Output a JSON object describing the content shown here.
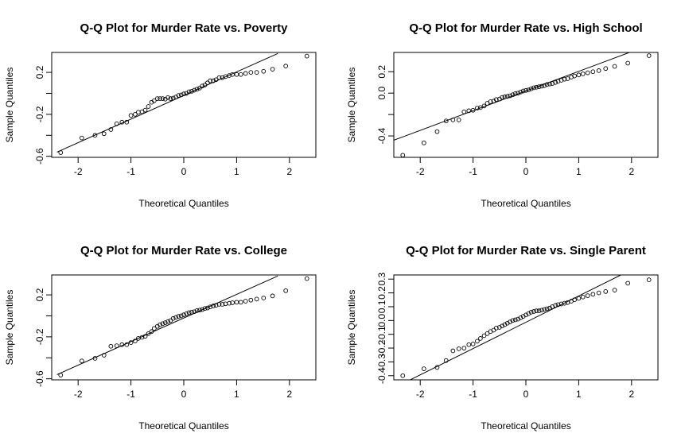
{
  "chart_data": [
    {
      "type": "scatter",
      "title": "Q-Q Plot for Murder Rate vs. Poverty",
      "xlabel": "Theoretical Quantiles",
      "ylabel": "Sample Quantiles",
      "xlim": [
        -2.5,
        2.5
      ],
      "ylim": [
        -0.61,
        0.39
      ],
      "xticks": [
        -2,
        -1,
        0,
        1,
        2
      ],
      "yticks": [
        -0.6,
        -0.2,
        0.2
      ],
      "yticks_minor": [
        -0.4,
        0.0
      ],
      "reference_line": {
        "x1": -2.4,
        "y1": -0.56,
        "x2": 1.78,
        "y2": 0.38
      },
      "points": {
        "x": [
          -2.33,
          -1.93,
          -1.68,
          -1.51,
          -1.38,
          -1.27,
          -1.17,
          -1.08,
          -1.0,
          -0.92,
          -0.86,
          -0.79,
          -0.73,
          -0.67,
          -0.61,
          -0.56,
          -0.5,
          -0.45,
          -0.4,
          -0.35,
          -0.3,
          -0.25,
          -0.2,
          -0.15,
          -0.1,
          -0.05,
          0.0,
          0.05,
          0.1,
          0.15,
          0.2,
          0.25,
          0.3,
          0.35,
          0.4,
          0.45,
          0.5,
          0.56,
          0.61,
          0.67,
          0.73,
          0.79,
          0.86,
          0.92,
          1.0,
          1.08,
          1.17,
          1.27,
          1.38,
          1.51,
          1.68,
          1.93,
          2.33
        ],
        "y": [
          -0.565,
          -0.425,
          -0.4,
          -0.385,
          -0.345,
          -0.29,
          -0.275,
          -0.275,
          -0.21,
          -0.2,
          -0.18,
          -0.175,
          -0.16,
          -0.125,
          -0.085,
          -0.07,
          -0.05,
          -0.05,
          -0.05,
          -0.055,
          -0.04,
          -0.05,
          -0.045,
          -0.035,
          -0.02,
          -0.015,
          -0.005,
          0.0,
          0.015,
          0.02,
          0.03,
          0.04,
          0.05,
          0.07,
          0.08,
          0.1,
          0.12,
          0.12,
          0.13,
          0.15,
          0.15,
          0.16,
          0.17,
          0.18,
          0.18,
          0.18,
          0.19,
          0.2,
          0.2,
          0.21,
          0.23,
          0.26,
          0.355
        ]
      }
    },
    {
      "type": "scatter",
      "title": "Q-Q Plot for Murder Rate vs. High School",
      "xlabel": "Theoretical Quantiles",
      "ylabel": "Sample Quantiles",
      "xlim": [
        -2.5,
        2.5
      ],
      "ylim": [
        -0.6,
        0.38
      ],
      "xticks": [
        -2,
        -1,
        0,
        1,
        2
      ],
      "yticks": [
        -0.4,
        0.0,
        0.2
      ],
      "yticks_minor": [
        -0.2
      ],
      "reference_line": {
        "x1": -2.5,
        "y1": -0.44,
        "x2": 1.96,
        "y2": 0.38
      },
      "points": {
        "x": [
          -2.33,
          -1.93,
          -1.68,
          -1.51,
          -1.38,
          -1.27,
          -1.17,
          -1.08,
          -1.0,
          -0.92,
          -0.86,
          -0.79,
          -0.73,
          -0.67,
          -0.61,
          -0.56,
          -0.5,
          -0.45,
          -0.4,
          -0.35,
          -0.3,
          -0.25,
          -0.2,
          -0.15,
          -0.1,
          -0.05,
          0.0,
          0.05,
          0.1,
          0.15,
          0.2,
          0.25,
          0.3,
          0.35,
          0.4,
          0.45,
          0.5,
          0.56,
          0.61,
          0.67,
          0.73,
          0.79,
          0.86,
          0.92,
          1.0,
          1.08,
          1.17,
          1.27,
          1.38,
          1.51,
          1.68,
          1.93,
          2.33
        ],
        "y": [
          -0.58,
          -0.465,
          -0.36,
          -0.26,
          -0.25,
          -0.25,
          -0.175,
          -0.165,
          -0.16,
          -0.14,
          -0.135,
          -0.12,
          -0.095,
          -0.08,
          -0.075,
          -0.06,
          -0.055,
          -0.04,
          -0.035,
          -0.03,
          -0.025,
          -0.015,
          -0.005,
          0.0,
          0.01,
          0.02,
          0.025,
          0.03,
          0.04,
          0.05,
          0.055,
          0.06,
          0.065,
          0.07,
          0.08,
          0.085,
          0.09,
          0.1,
          0.11,
          0.12,
          0.13,
          0.135,
          0.15,
          0.16,
          0.17,
          0.18,
          0.19,
          0.2,
          0.21,
          0.23,
          0.25,
          0.28,
          0.35
        ]
      }
    },
    {
      "type": "scatter",
      "title": "Q-Q Plot for Murder Rate vs. College",
      "xlabel": "Theoretical Quantiles",
      "ylabel": "Sample Quantiles",
      "xlim": [
        -2.5,
        2.5
      ],
      "ylim": [
        -0.61,
        0.39
      ],
      "xticks": [
        -2,
        -1,
        0,
        1,
        2
      ],
      "yticks": [
        -0.6,
        -0.2,
        0.2
      ],
      "yticks_minor": [
        -0.4,
        0.0
      ],
      "reference_line": {
        "x1": -2.4,
        "y1": -0.56,
        "x2": 1.78,
        "y2": 0.38
      },
      "points": {
        "x": [
          -2.33,
          -1.93,
          -1.68,
          -1.51,
          -1.38,
          -1.27,
          -1.17,
          -1.08,
          -1.0,
          -0.92,
          -0.86,
          -0.79,
          -0.73,
          -0.67,
          -0.61,
          -0.56,
          -0.5,
          -0.45,
          -0.4,
          -0.35,
          -0.3,
          -0.25,
          -0.2,
          -0.15,
          -0.1,
          -0.05,
          0.0,
          0.05,
          0.1,
          0.15,
          0.2,
          0.25,
          0.3,
          0.35,
          0.4,
          0.45,
          0.5,
          0.56,
          0.61,
          0.67,
          0.73,
          0.79,
          0.86,
          0.92,
          1.0,
          1.08,
          1.17,
          1.27,
          1.38,
          1.51,
          1.68,
          1.93,
          2.33
        ],
        "y": [
          -0.565,
          -0.43,
          -0.405,
          -0.375,
          -0.29,
          -0.285,
          -0.275,
          -0.275,
          -0.255,
          -0.24,
          -0.215,
          -0.205,
          -0.195,
          -0.17,
          -0.15,
          -0.12,
          -0.1,
          -0.085,
          -0.075,
          -0.065,
          -0.055,
          -0.045,
          -0.025,
          -0.015,
          -0.005,
          0.0,
          0.01,
          0.02,
          0.03,
          0.035,
          0.04,
          0.05,
          0.055,
          0.06,
          0.07,
          0.075,
          0.085,
          0.095,
          0.1,
          0.11,
          0.11,
          0.115,
          0.12,
          0.125,
          0.13,
          0.13,
          0.14,
          0.15,
          0.16,
          0.17,
          0.19,
          0.24,
          0.355
        ]
      }
    },
    {
      "type": "scatter",
      "title": "Q-Q Plot for Murder Rate vs. Single Parent",
      "xlabel": "Theoretical Quantiles",
      "ylabel": "Sample Quantiles",
      "xlim": [
        -2.5,
        2.5
      ],
      "ylim": [
        -0.43,
        0.33
      ],
      "xticks": [
        -2,
        -1,
        0,
        1,
        2
      ],
      "yticks": [
        -0.4,
        -0.3,
        -0.2,
        -0.1,
        0.0,
        0.1,
        0.2,
        0.3
      ],
      "yticks_minor": [],
      "reference_line": {
        "x1": -2.4,
        "y1": -0.47,
        "x2": 1.8,
        "y2": 0.33
      },
      "points": {
        "x": [
          -2.33,
          -1.93,
          -1.68,
          -1.51,
          -1.38,
          -1.27,
          -1.17,
          -1.08,
          -1.0,
          -0.92,
          -0.86,
          -0.79,
          -0.73,
          -0.67,
          -0.61,
          -0.56,
          -0.5,
          -0.45,
          -0.4,
          -0.35,
          -0.3,
          -0.25,
          -0.2,
          -0.15,
          -0.1,
          -0.05,
          0.0,
          0.05,
          0.1,
          0.15,
          0.2,
          0.25,
          0.3,
          0.35,
          0.4,
          0.45,
          0.5,
          0.56,
          0.61,
          0.67,
          0.73,
          0.79,
          0.86,
          0.92,
          1.0,
          1.08,
          1.17,
          1.27,
          1.38,
          1.51,
          1.68,
          1.93,
          2.33
        ],
        "y": [
          -0.4,
          -0.35,
          -0.34,
          -0.29,
          -0.22,
          -0.205,
          -0.2,
          -0.175,
          -0.17,
          -0.15,
          -0.13,
          -0.11,
          -0.095,
          -0.08,
          -0.07,
          -0.055,
          -0.05,
          -0.04,
          -0.03,
          -0.02,
          -0.01,
          0.0,
          0.005,
          0.01,
          0.02,
          0.03,
          0.04,
          0.05,
          0.06,
          0.065,
          0.07,
          0.07,
          0.075,
          0.08,
          0.085,
          0.09,
          0.1,
          0.11,
          0.115,
          0.12,
          0.125,
          0.13,
          0.14,
          0.15,
          0.16,
          0.17,
          0.18,
          0.19,
          0.2,
          0.21,
          0.22,
          0.27,
          0.295
        ]
      }
    }
  ]
}
